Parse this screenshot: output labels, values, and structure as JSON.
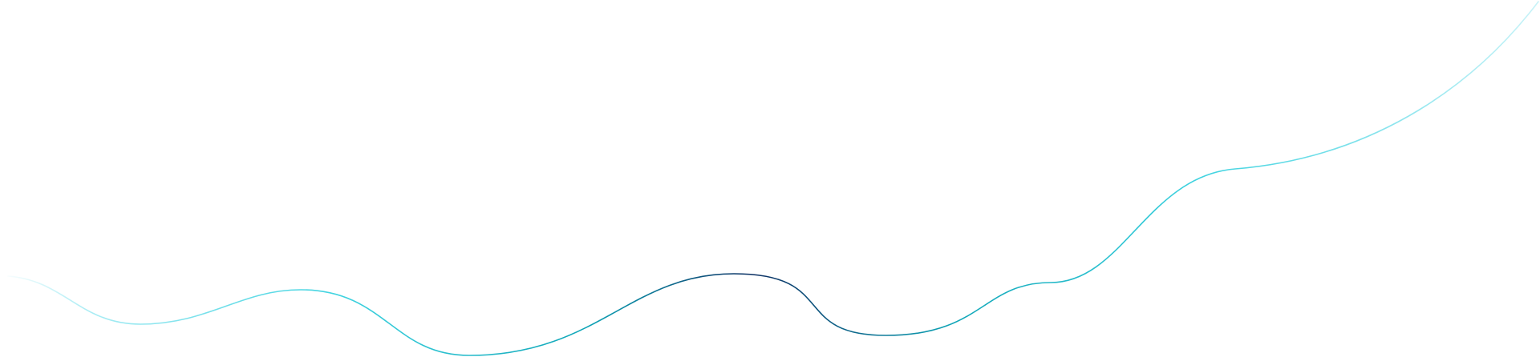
{
  "decoration": {
    "name": "decorative-wave-line",
    "gradient_colors": {
      "start": "#ffffff",
      "light_cyan": "#a8ecf4",
      "cyan": "#3fd3e0",
      "teal": "#10a6b8",
      "navy": "#0b2f63",
      "end": "#c9f3f8"
    }
  }
}
